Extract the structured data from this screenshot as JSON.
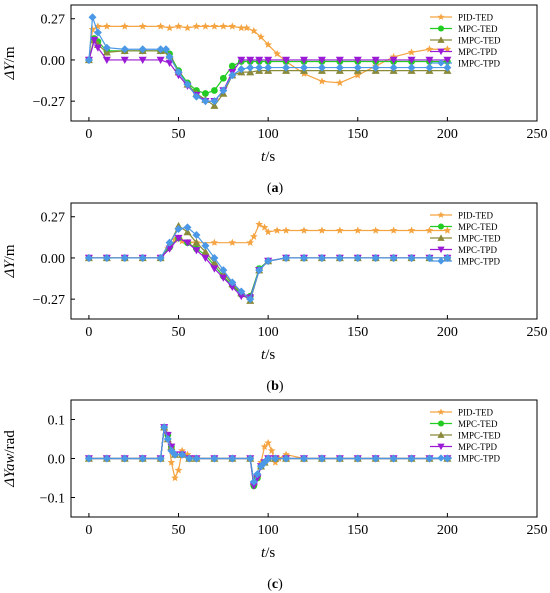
{
  "colors": {
    "PID-TED": "#f5a442",
    "MPC-TED": "#22cc22",
    "IMPC-TED": "#8a8a3a",
    "MPC-TPD": "#9a1ad6",
    "IMPC-TPD": "#4a98e6"
  },
  "markers": {
    "PID-TED": "star",
    "MPC-TED": "circle",
    "IMPC-TED": "triangle-up",
    "MPC-TPD": "triangle-down",
    "IMPC-TPD": "diamond"
  },
  "chart_data": [
    {
      "type": "line",
      "caption_letter": "a",
      "ylabel_main": "ΔY",
      "ylabel_unit": "/m",
      "xlabel_main": "t",
      "xlabel_unit": "/s",
      "xlim": [
        -10,
        250
      ],
      "ylim": [
        -0.4,
        0.36
      ],
      "xticks": [
        0,
        50,
        100,
        150,
        200,
        250
      ],
      "yticks": [
        0.27,
        0.0,
        -0.27
      ],
      "ytick_labels": [
        "0.27",
        "0.00",
        "−0.27"
      ],
      "legend": [
        "PID-TED",
        "MPC-TED",
        "IMPC-TED",
        "MPC-TPD",
        "IMPC-TPD"
      ],
      "legend_position": "top-right",
      "series": [
        {
          "name": "PID-TED",
          "x": [
            0,
            2,
            5,
            10,
            20,
            30,
            40,
            45,
            50,
            55,
            60,
            65,
            70,
            75,
            80,
            85,
            88,
            92,
            96,
            100,
            105,
            110,
            120,
            130,
            140,
            150,
            160,
            170,
            180,
            190,
            200
          ],
          "y": [
            0.0,
            0.2,
            0.22,
            0.22,
            0.22,
            0.22,
            0.22,
            0.21,
            0.22,
            0.21,
            0.22,
            0.22,
            0.22,
            0.22,
            0.22,
            0.21,
            0.21,
            0.19,
            0.15,
            0.1,
            0.04,
            -0.01,
            -0.09,
            -0.14,
            -0.15,
            -0.1,
            -0.04,
            0.02,
            0.05,
            0.07,
            0.07
          ]
        },
        {
          "name": "MPC-TED",
          "x": [
            0,
            3,
            5,
            10,
            20,
            30,
            40,
            45,
            50,
            55,
            60,
            65,
            70,
            75,
            80,
            85,
            90,
            95,
            100,
            110,
            120,
            130,
            140,
            150,
            160,
            170,
            180,
            190,
            200
          ],
          "y": [
            0.0,
            0.14,
            0.12,
            0.06,
            0.06,
            0.06,
            0.06,
            0.04,
            -0.07,
            -0.15,
            -0.2,
            -0.22,
            -0.2,
            -0.12,
            -0.04,
            -0.01,
            -0.01,
            -0.01,
            -0.01,
            -0.01,
            -0.01,
            -0.01,
            -0.01,
            -0.01,
            -0.01,
            -0.01,
            -0.01,
            -0.01,
            -0.01
          ]
        },
        {
          "name": "IMPC-TED",
          "x": [
            0,
            3,
            5,
            10,
            20,
            30,
            40,
            45,
            50,
            55,
            60,
            65,
            70,
            75,
            80,
            85,
            90,
            95,
            100,
            110,
            120,
            130,
            140,
            150,
            160,
            170,
            180,
            190,
            200
          ],
          "y": [
            0.0,
            0.13,
            0.1,
            0.05,
            0.06,
            0.06,
            0.06,
            0.03,
            -0.08,
            -0.16,
            -0.22,
            -0.26,
            -0.3,
            -0.22,
            -0.1,
            -0.08,
            -0.08,
            -0.07,
            -0.07,
            -0.07,
            -0.07,
            -0.07,
            -0.07,
            -0.07,
            -0.07,
            -0.07,
            -0.07,
            -0.07,
            -0.07
          ]
        },
        {
          "name": "MPC-TPD",
          "x": [
            0,
            3,
            5,
            10,
            20,
            30,
            40,
            45,
            50,
            55,
            60,
            65,
            70,
            75,
            80,
            85,
            90,
            95,
            100,
            110,
            120,
            130,
            140,
            150,
            160,
            170,
            180,
            190,
            200
          ],
          "y": [
            0.0,
            0.13,
            0.08,
            0.0,
            0.0,
            0.0,
            0.0,
            -0.02,
            -0.1,
            -0.17,
            -0.23,
            -0.27,
            -0.27,
            -0.2,
            -0.08,
            0.0,
            0.0,
            0.0,
            0.0,
            0.0,
            0.0,
            0.0,
            0.0,
            0.0,
            0.0,
            0.0,
            0.0,
            0.0,
            0.0
          ]
        },
        {
          "name": "IMPC-TPD",
          "x": [
            0,
            2,
            5,
            10,
            20,
            30,
            40,
            43,
            45,
            50,
            55,
            60,
            65,
            70,
            75,
            80,
            85,
            90,
            95,
            100,
            110,
            120,
            130,
            140,
            150,
            160,
            170,
            180,
            190,
            200
          ],
          "y": [
            0.0,
            0.28,
            0.18,
            0.08,
            0.07,
            0.07,
            0.07,
            0.07,
            0.02,
            -0.08,
            -0.16,
            -0.24,
            -0.27,
            -0.27,
            -0.2,
            -0.1,
            -0.06,
            -0.05,
            -0.05,
            -0.05,
            -0.05,
            -0.05,
            -0.05,
            -0.05,
            -0.05,
            -0.05,
            -0.05,
            -0.05,
            -0.05,
            -0.05
          ]
        }
      ]
    },
    {
      "type": "line",
      "caption_letter": "b",
      "ylabel_main": "ΔY",
      "ylabel_unit": "/m",
      "xlabel_main": "t",
      "xlabel_unit": "/s",
      "xlim": [
        -10,
        250
      ],
      "ylim": [
        -0.4,
        0.36
      ],
      "xticks": [
        0,
        50,
        100,
        150,
        200,
        250
      ],
      "yticks": [
        0.27,
        0.0,
        -0.27
      ],
      "ytick_labels": [
        "0.27",
        "0.00",
        "−0.27"
      ],
      "legend": [
        "PID-TED",
        "MPC-TED",
        "IMPC-TED",
        "MPC-TPD",
        "IMPC-TPD"
      ],
      "legend_position": "top-right",
      "series": [
        {
          "name": "PID-TED",
          "x": [
            0,
            10,
            20,
            30,
            40,
            44,
            48,
            52,
            56,
            60,
            70,
            80,
            90,
            92,
            95,
            98,
            100,
            105,
            110,
            120,
            130,
            140,
            150,
            160,
            170,
            180,
            190,
            200
          ],
          "y": [
            0.0,
            0.0,
            0.0,
            0.0,
            0.0,
            0.06,
            0.12,
            0.11,
            0.1,
            0.1,
            0.1,
            0.1,
            0.1,
            0.14,
            0.22,
            0.2,
            0.17,
            0.18,
            0.18,
            0.18,
            0.18,
            0.18,
            0.18,
            0.18,
            0.18,
            0.18,
            0.18,
            0.18
          ]
        },
        {
          "name": "MPC-TED",
          "x": [
            0,
            10,
            20,
            30,
            40,
            45,
            50,
            55,
            60,
            65,
            70,
            75,
            80,
            85,
            90,
            95,
            100,
            110,
            120,
            130,
            140,
            150,
            160,
            170,
            180,
            190,
            200
          ],
          "y": [
            0.0,
            0.0,
            0.0,
            0.0,
            0.0,
            0.07,
            0.13,
            0.1,
            0.06,
            0.02,
            -0.05,
            -0.12,
            -0.18,
            -0.24,
            -0.25,
            -0.07,
            -0.02,
            0.0,
            0.0,
            0.0,
            0.0,
            0.0,
            0.0,
            0.0,
            0.0,
            0.0,
            0.0
          ]
        },
        {
          "name": "IMPC-TED",
          "x": [
            0,
            10,
            20,
            30,
            40,
            45,
            50,
            55,
            60,
            65,
            70,
            75,
            80,
            85,
            90,
            95,
            100,
            110,
            120,
            130,
            140,
            150,
            160,
            170,
            180,
            190,
            200
          ],
          "y": [
            0.0,
            0.0,
            0.0,
            0.0,
            0.0,
            0.09,
            0.21,
            0.17,
            0.1,
            0.04,
            -0.03,
            -0.1,
            -0.17,
            -0.23,
            -0.28,
            -0.08,
            -0.02,
            0.0,
            0.0,
            0.0,
            0.0,
            0.0,
            0.0,
            0.0,
            0.0,
            0.0,
            0.0
          ]
        },
        {
          "name": "MPC-TPD",
          "x": [
            0,
            10,
            20,
            30,
            40,
            45,
            50,
            55,
            60,
            65,
            70,
            75,
            80,
            85,
            90,
            95,
            100,
            110,
            120,
            130,
            140,
            150,
            160,
            170,
            180,
            190,
            200
          ],
          "y": [
            0.0,
            0.0,
            0.0,
            0.0,
            0.0,
            0.06,
            0.13,
            0.1,
            0.05,
            0.0,
            -0.07,
            -0.13,
            -0.19,
            -0.25,
            -0.26,
            -0.08,
            -0.02,
            0.0,
            0.0,
            0.0,
            0.0,
            0.0,
            0.0,
            0.0,
            0.0,
            0.0,
            0.0
          ]
        },
        {
          "name": "IMPC-TPD",
          "x": [
            0,
            10,
            20,
            30,
            40,
            45,
            50,
            55,
            60,
            65,
            70,
            75,
            80,
            85,
            90,
            95,
            100,
            110,
            120,
            130,
            140,
            150,
            160,
            170,
            180,
            190,
            200
          ],
          "y": [
            0.0,
            0.0,
            0.0,
            0.0,
            0.0,
            0.1,
            0.19,
            0.2,
            0.15,
            0.08,
            0.0,
            -0.08,
            -0.16,
            -0.22,
            -0.27,
            -0.08,
            -0.02,
            0.0,
            0.0,
            0.0,
            0.0,
            0.0,
            0.0,
            0.0,
            0.0,
            0.0,
            0.0
          ]
        }
      ]
    },
    {
      "type": "line",
      "caption_letter": "c",
      "ylabel_main": "ΔYaw",
      "ylabel_unit": "/rad",
      "xlabel_main": "t",
      "xlabel_unit": "/s",
      "xlim": [
        -10,
        250
      ],
      "ylim": [
        -0.15,
        0.15
      ],
      "xticks": [
        0,
        50,
        100,
        150,
        200,
        250
      ],
      "yticks": [
        0.1,
        0.0,
        -0.1
      ],
      "ytick_labels": [
        "0.1",
        "0.0",
        "−0.1"
      ],
      "legend": [
        "PID-TED",
        "MPC-TED",
        "IMPC-TED",
        "MPC-TPD",
        "IMPC-TPD"
      ],
      "legend_position": "top-right",
      "series": [
        {
          "name": "PID-TED",
          "x": [
            0,
            10,
            20,
            30,
            40,
            42,
            44,
            46,
            48,
            50,
            52,
            55,
            60,
            70,
            80,
            90,
            92,
            94,
            96,
            98,
            100,
            102,
            104,
            106,
            110,
            120,
            130,
            140,
            150,
            160,
            170,
            180,
            190,
            200
          ],
          "y": [
            0.0,
            0.0,
            0.0,
            0.0,
            0.0,
            0.08,
            0.06,
            -0.01,
            -0.05,
            -0.03,
            0.02,
            0.01,
            0.0,
            0.0,
            0.0,
            0.0,
            -0.07,
            -0.05,
            -0.01,
            0.03,
            0.04,
            0.02,
            -0.01,
            0.0,
            0.01,
            0.0,
            0.0,
            0.0,
            0.0,
            0.0,
            0.0,
            0.0,
            0.0,
            0.0
          ]
        },
        {
          "name": "MPC-TED",
          "x": [
            0,
            10,
            20,
            30,
            40,
            42,
            44,
            46,
            48,
            52,
            56,
            60,
            70,
            80,
            90,
            92,
            94,
            96,
            98,
            100,
            104,
            110,
            120,
            130,
            140,
            150,
            160,
            170,
            180,
            190,
            200
          ],
          "y": [
            0.0,
            0.0,
            0.0,
            0.0,
            0.0,
            0.08,
            0.06,
            0.03,
            0.01,
            0.01,
            0.0,
            0.0,
            0.0,
            0.0,
            0.0,
            -0.07,
            -0.05,
            -0.02,
            -0.01,
            0.0,
            0.0,
            0.0,
            0.0,
            0.0,
            0.0,
            0.0,
            0.0,
            0.0,
            0.0,
            0.0,
            0.0
          ]
        },
        {
          "name": "IMPC-TED",
          "x": [
            0,
            10,
            20,
            30,
            40,
            42,
            44,
            46,
            48,
            52,
            56,
            60,
            70,
            80,
            90,
            92,
            94,
            96,
            98,
            100,
            104,
            110,
            120,
            130,
            140,
            150,
            160,
            170,
            180,
            190,
            200
          ],
          "y": [
            0.0,
            0.0,
            0.0,
            0.0,
            0.0,
            0.08,
            0.05,
            0.03,
            0.01,
            0.01,
            0.0,
            0.0,
            0.0,
            0.0,
            0.0,
            -0.06,
            -0.04,
            -0.02,
            -0.01,
            0.0,
            0.0,
            0.0,
            0.0,
            0.0,
            0.0,
            0.0,
            0.0,
            0.0,
            0.0,
            0.0,
            0.0
          ]
        },
        {
          "name": "MPC-TPD",
          "x": [
            0,
            10,
            20,
            30,
            40,
            42,
            44,
            46,
            48,
            52,
            56,
            60,
            70,
            80,
            90,
            92,
            94,
            96,
            98,
            100,
            104,
            110,
            120,
            130,
            140,
            150,
            160,
            170,
            180,
            190,
            200
          ],
          "y": [
            0.0,
            0.0,
            0.0,
            0.0,
            0.0,
            0.08,
            0.06,
            0.03,
            0.01,
            0.01,
            0.0,
            0.0,
            0.0,
            0.0,
            0.0,
            -0.07,
            -0.05,
            -0.02,
            -0.01,
            0.0,
            0.0,
            0.0,
            0.0,
            0.0,
            0.0,
            0.0,
            0.0,
            0.0,
            0.0,
            0.0,
            0.0
          ]
        },
        {
          "name": "IMPC-TPD",
          "x": [
            0,
            10,
            20,
            30,
            40,
            42,
            44,
            46,
            48,
            52,
            56,
            60,
            70,
            80,
            90,
            92,
            94,
            96,
            98,
            100,
            104,
            110,
            120,
            130,
            140,
            150,
            160,
            170,
            180,
            190,
            200
          ],
          "y": [
            0.0,
            0.0,
            0.0,
            0.0,
            0.0,
            0.08,
            0.05,
            0.02,
            0.01,
            0.01,
            0.0,
            0.0,
            0.0,
            0.0,
            0.0,
            -0.06,
            -0.04,
            -0.02,
            -0.01,
            0.0,
            0.0,
            0.0,
            0.0,
            0.0,
            0.0,
            0.0,
            0.0,
            0.0,
            0.0,
            0.0,
            0.0
          ]
        }
      ]
    }
  ]
}
